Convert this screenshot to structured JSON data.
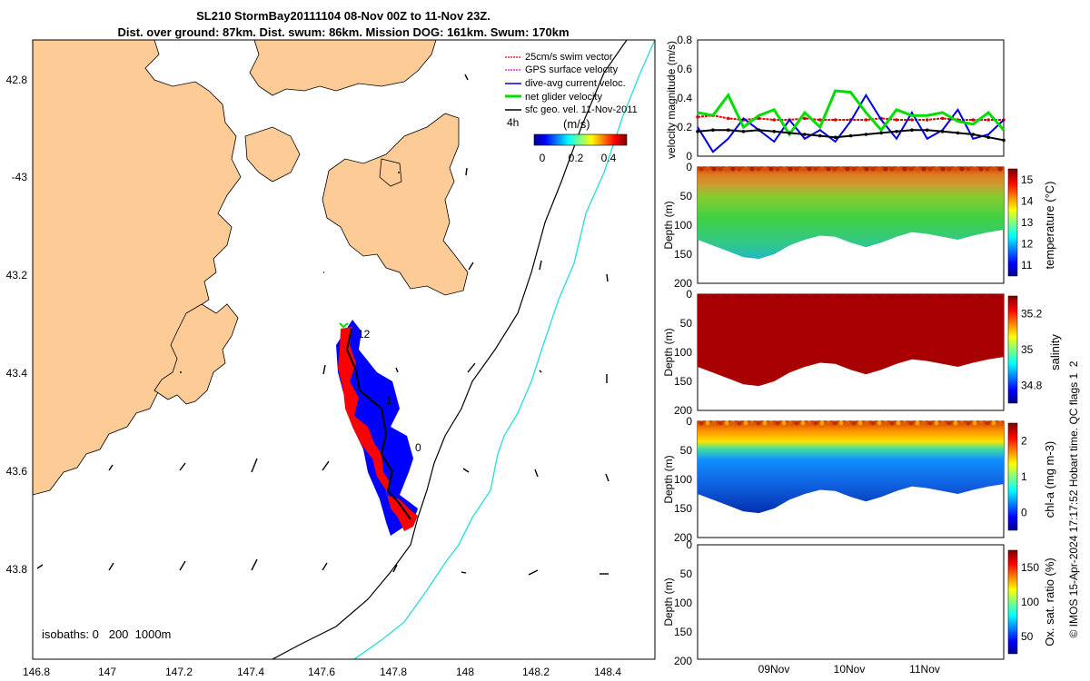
{
  "title": {
    "line1": "SL210 StormBay20111104 08-Nov 00Z to 11-Nov 23Z.",
    "line2": "Dist. over ground: 87km. Dist. swum: 86km. Mission DOG: 161km. Swum: 170km"
  },
  "map": {
    "lon_ticks": [
      "146.8",
      "147",
      "147.2",
      "147.4",
      "147.6",
      "147.8",
      "148",
      "148.2",
      "148.4"
    ],
    "lat_ticks": [
      "42.8",
      "-43",
      "43.2",
      "43.4",
      "43.6",
      "43.8"
    ],
    "legend": [
      {
        "label": "25cm/s swim vector",
        "color": "#e00000"
      },
      {
        "label": "GPS surface velocity",
        "color": "#e000e0"
      },
      {
        "label": "dive-avg current veloc.",
        "color": "#0000e0"
      },
      {
        "label": "net glider velocity",
        "color": "#00dd00"
      },
      {
        "label": "sfc geo. vel. 11-Nov-2011",
        "color": "#000000"
      }
    ],
    "colorbar_label": "(m/s)",
    "colorbar_ticks": [
      "0",
      "0.2",
      "0.4"
    ],
    "time_label": "4h",
    "track_labels": [
      "12",
      "1",
      "0"
    ],
    "isobaths": "isobaths: 0   200  1000m"
  },
  "colors": {
    "land": "#fccb96",
    "sea": "#ffffff",
    "track_red": "#ff0000",
    "track_blue": "#0000ff",
    "iso200": "#000000",
    "iso1000": "#33dddd"
  },
  "chart_data": [
    {
      "type": "line",
      "ylabel": "velocity magnitude (m/s)",
      "ylim": [
        0,
        0.8
      ],
      "yticks": [
        "0",
        "0.2",
        "0.4",
        "0.6",
        "0.8"
      ],
      "x": [
        0,
        0.05,
        0.1,
        0.15,
        0.2,
        0.25,
        0.3,
        0.35,
        0.4,
        0.45,
        0.5,
        0.55,
        0.6,
        0.65,
        0.7,
        0.75,
        0.8,
        0.85,
        0.9,
        0.95,
        1.0
      ],
      "series": [
        {
          "name": "25cm/s swim vector",
          "color": "#e00000",
          "values": [
            0.27,
            0.28,
            0.26,
            0.25,
            0.26,
            0.25,
            0.25,
            0.26,
            0.25,
            0.25,
            0.25,
            0.25,
            0.26,
            0.25,
            0.25,
            0.25,
            0.26,
            0.25,
            0.25,
            0.25,
            0.25
          ]
        },
        {
          "name": "dive-avg current veloc.",
          "color": "#0000e0",
          "values": [
            0.2,
            0.03,
            0.12,
            0.26,
            0.18,
            0.1,
            0.25,
            0.12,
            0.18,
            0.1,
            0.24,
            0.42,
            0.25,
            0.12,
            0.3,
            0.12,
            0.18,
            0.32,
            0.12,
            0.15,
            0.25
          ]
        },
        {
          "name": "net glider velocity",
          "color": "#00dd00",
          "values": [
            0.3,
            0.28,
            0.42,
            0.2,
            0.28,
            0.32,
            0.15,
            0.3,
            0.2,
            0.45,
            0.44,
            0.3,
            0.18,
            0.32,
            0.28,
            0.28,
            0.3,
            0.24,
            0.22,
            0.3,
            0.18
          ]
        },
        {
          "name": "sfc geo. vel. 11-Nov-2011",
          "color": "#000000",
          "values": [
            0.17,
            0.18,
            0.18,
            0.17,
            0.18,
            0.17,
            0.16,
            0.15,
            0.14,
            0.13,
            0.14,
            0.15,
            0.16,
            0.17,
            0.18,
            0.18,
            0.17,
            0.16,
            0.15,
            0.13,
            0.11
          ]
        }
      ]
    },
    {
      "type": "heatmap",
      "ylabel": "Depth (m)",
      "clabel": "temperature (°C)",
      "ylim": [
        0,
        200
      ],
      "yticks": [
        "0",
        "50",
        "100",
        "150",
        "200"
      ],
      "cticks": [
        "15",
        "14",
        "13",
        "12",
        "11"
      ],
      "bottom_depth": [
        125,
        135,
        145,
        155,
        158,
        150,
        135,
        125,
        118,
        120,
        130,
        138,
        130,
        120,
        112,
        115,
        120,
        125,
        118,
        112,
        108
      ]
    },
    {
      "type": "heatmap",
      "ylabel": "Depth (m)",
      "clabel": "salinity",
      "ylim": [
        0,
        200
      ],
      "yticks": [
        "0",
        "50",
        "100",
        "150",
        "200"
      ],
      "cticks": [
        "35.2",
        "35",
        "34.8"
      ],
      "bottom_depth": [
        125,
        135,
        145,
        155,
        158,
        150,
        135,
        125,
        118,
        120,
        130,
        138,
        130,
        120,
        112,
        115,
        120,
        125,
        118,
        112,
        108
      ]
    },
    {
      "type": "heatmap",
      "ylabel": "Depth (m)",
      "clabel": "chl-a (mg m-3)",
      "ylim": [
        0,
        200
      ],
      "yticks": [
        "0",
        "50",
        "100",
        "150",
        "200"
      ],
      "cticks": [
        "2",
        "1",
        "0"
      ],
      "bottom_depth": [
        125,
        135,
        145,
        155,
        158,
        150,
        135,
        125,
        118,
        120,
        130,
        138,
        130,
        120,
        112,
        115,
        120,
        125,
        118,
        112,
        108
      ]
    },
    {
      "type": "heatmap",
      "ylabel": "Depth (m)",
      "clabel": "Ox. sat. ratio (%)",
      "ylim": [
        0,
        200
      ],
      "yticks": [
        "0",
        "50",
        "100",
        "150",
        "200"
      ],
      "cticks": [
        "150",
        "100",
        "50"
      ],
      "xticks": [
        "09Nov",
        "10Nov",
        "11Nov"
      ]
    }
  ],
  "credit": "© IMOS 15-Apr-2024 17:17:52 Hobart time. QC flags 1  2"
}
